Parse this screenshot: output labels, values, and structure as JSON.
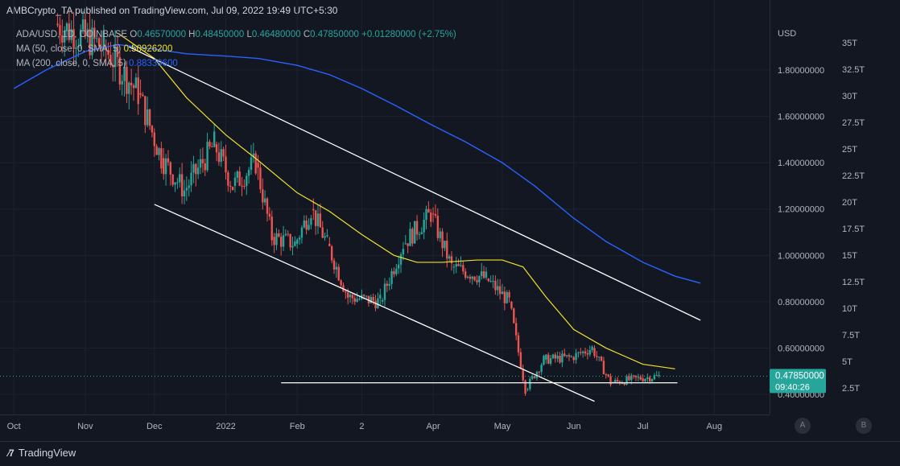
{
  "caption": "AMBCrypto_TA published on TradingView.com, Jul 09, 2022 19:49 UTC+5:30",
  "legend": {
    "symbol": "ADA/USD, 1D, COINBASE",
    "open_label": "O",
    "open": "0.46570000",
    "high_label": "H",
    "high": "0.48450000",
    "low_label": "L",
    "low": "0.46480000",
    "close_label": "C",
    "close": "0.47850000",
    "change": "+0.01280000 (+2.75%)",
    "ma50_label": "MA (50, close, 0, SMA, 5)",
    "ma50_value": "0.50926200",
    "ma200_label": "MA (200, close, 0, SMA, 5)",
    "ma200_value": "0.88339600"
  },
  "price_scale": {
    "currency": "USD",
    "ticks": [
      "1.80000000",
      "1.60000000",
      "1.40000000",
      "1.20000000",
      "1.00000000",
      "0.80000000",
      "0.60000000",
      "0.40000000"
    ],
    "last_price": "0.47850000",
    "countdown": "09:40:26"
  },
  "volume_scale": {
    "ticks": [
      "35T",
      "32.5T",
      "30T",
      "27.5T",
      "25T",
      "22.5T",
      "20T",
      "17.5T",
      "15T",
      "12.5T",
      "10T",
      "7.5T",
      "5T",
      "2.5T"
    ]
  },
  "time_axis": {
    "labels": [
      "Oct",
      "Nov",
      "Dec",
      "2022",
      "Feb",
      "2",
      "Apr",
      "May",
      "Jun",
      "Jul",
      "Aug"
    ]
  },
  "bottom": {
    "brand": "TradingView",
    "btn_a": "A",
    "btn_b": "B"
  },
  "chart_data": {
    "type": "candlestick",
    "symbol": "ADA/USD",
    "timeframe": "1D",
    "ylim": [
      0.34,
      1.95
    ],
    "x_range": [
      "2021-09-25",
      "2022-08-25"
    ],
    "ma200": [
      {
        "date": "2021-10-01",
        "y": 1.72
      },
      {
        "date": "2021-10-15",
        "y": 1.8
      },
      {
        "date": "2021-11-01",
        "y": 1.88
      },
      {
        "date": "2021-11-15",
        "y": 1.91
      },
      {
        "date": "2021-12-01",
        "y": 1.89
      },
      {
        "date": "2021-12-15",
        "y": 1.87
      },
      {
        "date": "2022-01-01",
        "y": 1.86
      },
      {
        "date": "2022-01-15",
        "y": 1.85
      },
      {
        "date": "2022-02-01",
        "y": 1.82
      },
      {
        "date": "2022-02-15",
        "y": 1.78
      },
      {
        "date": "2022-03-01",
        "y": 1.72
      },
      {
        "date": "2022-03-15",
        "y": 1.65
      },
      {
        "date": "2022-04-01",
        "y": 1.56
      },
      {
        "date": "2022-04-15",
        "y": 1.49
      },
      {
        "date": "2022-05-01",
        "y": 1.4
      },
      {
        "date": "2022-05-15",
        "y": 1.3
      },
      {
        "date": "2022-06-01",
        "y": 1.16
      },
      {
        "date": "2022-06-15",
        "y": 1.06
      },
      {
        "date": "2022-07-01",
        "y": 0.97
      },
      {
        "date": "2022-07-15",
        "y": 0.91
      },
      {
        "date": "2022-07-26",
        "y": 0.88
      }
    ],
    "ma50": [
      {
        "date": "2021-11-15",
        "y": 1.96
      },
      {
        "date": "2021-12-01",
        "y": 1.85
      },
      {
        "date": "2021-12-15",
        "y": 1.68
      },
      {
        "date": "2022-01-01",
        "y": 1.52
      },
      {
        "date": "2022-01-15",
        "y": 1.41
      },
      {
        "date": "2022-02-01",
        "y": 1.27
      },
      {
        "date": "2022-02-08",
        "y": 1.23
      },
      {
        "date": "2022-02-15",
        "y": 1.19
      },
      {
        "date": "2022-03-01",
        "y": 1.09
      },
      {
        "date": "2022-03-15",
        "y": 1.0
      },
      {
        "date": "2022-03-25",
        "y": 0.97
      },
      {
        "date": "2022-04-05",
        "y": 0.97
      },
      {
        "date": "2022-04-20",
        "y": 0.98
      },
      {
        "date": "2022-05-01",
        "y": 0.98
      },
      {
        "date": "2022-05-10",
        "y": 0.95
      },
      {
        "date": "2022-05-20",
        "y": 0.82
      },
      {
        "date": "2022-06-01",
        "y": 0.68
      },
      {
        "date": "2022-06-15",
        "y": 0.6
      },
      {
        "date": "2022-07-01",
        "y": 0.53
      },
      {
        "date": "2022-07-15",
        "y": 0.51
      }
    ],
    "price_path": [
      {
        "date": "2021-10-20",
        "y": 2.0
      },
      {
        "date": "2021-11-10",
        "y": 1.9
      },
      {
        "date": "2021-11-25",
        "y": 1.7
      },
      {
        "date": "2021-12-05",
        "y": 1.42
      },
      {
        "date": "2021-12-15",
        "y": 1.28
      },
      {
        "date": "2021-12-28",
        "y": 1.48
      },
      {
        "date": "2022-01-05",
        "y": 1.3
      },
      {
        "date": "2022-01-15",
        "y": 1.4
      },
      {
        "date": "2022-01-22",
        "y": 1.08
      },
      {
        "date": "2022-02-01",
        "y": 1.05
      },
      {
        "date": "2022-02-08",
        "y": 1.2
      },
      {
        "date": "2022-02-15",
        "y": 1.05
      },
      {
        "date": "2022-02-24",
        "y": 0.82
      },
      {
        "date": "2022-03-10",
        "y": 0.8
      },
      {
        "date": "2022-03-20",
        "y": 1.05
      },
      {
        "date": "2022-04-01",
        "y": 1.18
      },
      {
        "date": "2022-04-10",
        "y": 0.95
      },
      {
        "date": "2022-04-25",
        "y": 0.9
      },
      {
        "date": "2022-05-05",
        "y": 0.8
      },
      {
        "date": "2022-05-12",
        "y": 0.42
      },
      {
        "date": "2022-05-20",
        "y": 0.55
      },
      {
        "date": "2022-06-01",
        "y": 0.56
      },
      {
        "date": "2022-06-10",
        "y": 0.6
      },
      {
        "date": "2022-06-18",
        "y": 0.45
      },
      {
        "date": "2022-07-01",
        "y": 0.47
      },
      {
        "date": "2022-07-09",
        "y": 0.4785
      }
    ],
    "trendlines": [
      {
        "label": "channel-upper",
        "from": {
          "date": "2021-11-20",
          "y": 1.9
        },
        "to": {
          "date": "2022-07-26",
          "y": 0.72
        }
      },
      {
        "label": "channel-lower",
        "from": {
          "date": "2021-12-01",
          "y": 1.22
        },
        "to": {
          "date": "2022-06-10",
          "y": 0.37
        }
      },
      {
        "label": "support",
        "from": {
          "date": "2022-01-25",
          "y": 0.45
        },
        "to": {
          "date": "2022-07-16",
          "y": 0.45
        }
      }
    ]
  }
}
